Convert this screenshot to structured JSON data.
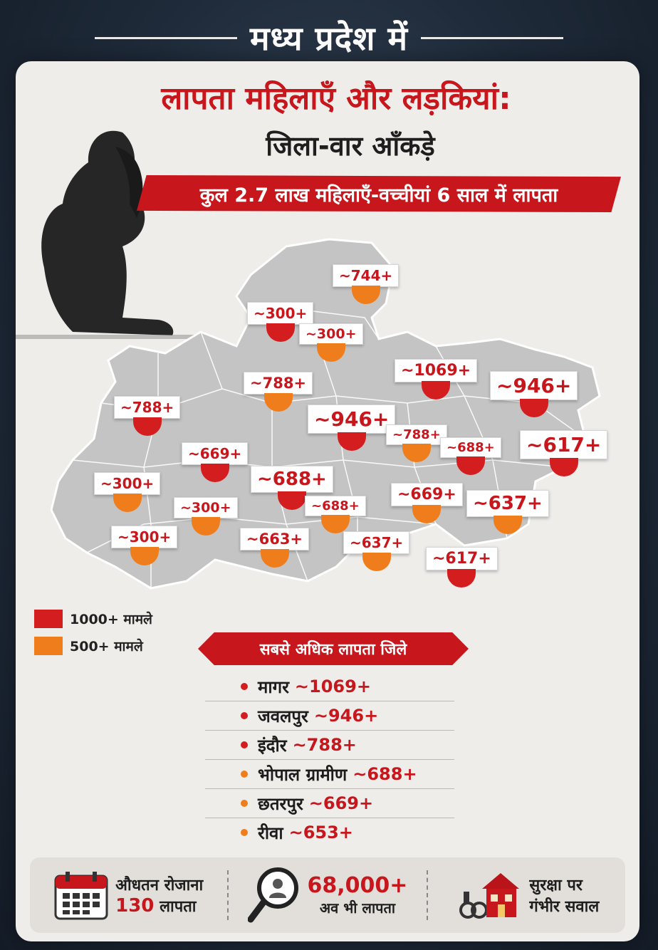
{
  "top_title": "मध्य प्रदेश में",
  "headline": "लापता महिलाएँ और लड़कियां:",
  "subhead": "जिला-वार आँकड़े",
  "banner": "कुल 2.7 लाख महिलाएँ-वच्चीयां 6 साल में लापता",
  "colors": {
    "red": "#d41d1f",
    "orange": "#f07d1c",
    "accent": "#c8161d"
  },
  "map_badges": [
    {
      "label": "~744+",
      "color": "orange"
    },
    {
      "label": "~300+",
      "color": "red"
    },
    {
      "label": "~300+",
      "color": "orange"
    },
    {
      "label": "~1069+",
      "color": "red"
    },
    {
      "label": "~946+",
      "color": "red"
    },
    {
      "label": "~788+",
      "color": "orange"
    },
    {
      "label": "~788+",
      "color": "red"
    },
    {
      "label": "~946+",
      "color": "red"
    },
    {
      "label": "~788+",
      "color": "orange"
    },
    {
      "label": "~688+",
      "color": "red"
    },
    {
      "label": "~617+",
      "color": "red"
    },
    {
      "label": "~669+",
      "color": "red"
    },
    {
      "label": "~300+",
      "color": "orange"
    },
    {
      "label": "~688+",
      "color": "red"
    },
    {
      "label": "~669+",
      "color": "orange"
    },
    {
      "label": "~637+",
      "color": "orange"
    },
    {
      "label": "~300+",
      "color": "orange"
    },
    {
      "label": "~688+",
      "color": "orange"
    },
    {
      "label": "~300+",
      "color": "orange"
    },
    {
      "label": "~663+",
      "color": "orange"
    },
    {
      "label": "~637+",
      "color": "orange"
    },
    {
      "label": "~617+",
      "color": "red"
    }
  ],
  "legend": [
    {
      "label": "1000+ मामले",
      "color": "red"
    },
    {
      "label": "500+ मामले",
      "color": "orange"
    }
  ],
  "top_heading": "सबसे अधिक लापता जिले",
  "top_districts": [
    {
      "name": "मागर",
      "value": "~1069+",
      "color": "red"
    },
    {
      "name": "जवलपुर",
      "value": "~946+",
      "color": "red"
    },
    {
      "name": "इंदौर",
      "value": "~788+",
      "color": "red"
    },
    {
      "name": "भोपाल ग्रामीण",
      "value": "~688+",
      "color": "orange"
    },
    {
      "name": "छतरपुर",
      "value": "~669+",
      "color": "orange"
    },
    {
      "name": "रीवा",
      "value": "~653+",
      "color": "orange"
    }
  ],
  "footer": {
    "daily_line1": "औधतन रोजाना",
    "daily_value": "130",
    "daily_line2": "लापता",
    "still_value": "68,000+",
    "still_line": "अव भी लापता",
    "safety_line1": "सुरक्षा पर",
    "safety_line2": "गंभीर सवाल",
    "icons": [
      "calendar-icon",
      "magnifier-icon",
      "house-icon"
    ]
  }
}
